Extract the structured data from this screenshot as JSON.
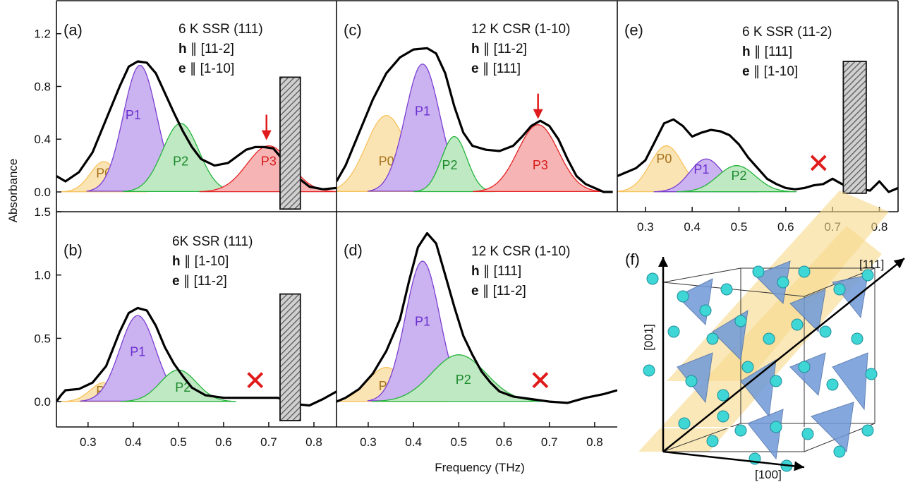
{
  "figure": {
    "ylabel": "Absorbance",
    "xlabel": "Frequency (THz)"
  },
  "chart_data": [
    {
      "panel": "(a)",
      "type": "area",
      "info": {
        "title": "6 K SSR (111)",
        "h_dir": "[11-2]",
        "e_dir": "[1-10]"
      },
      "xlim": [
        0.23,
        0.85
      ],
      "ylim": [
        -0.15,
        1.45
      ],
      "xticks": [],
      "yticks": [
        "0.0",
        "0.4",
        "0.8",
        "1.2"
      ],
      "ytick_values": [
        0.0,
        0.4,
        0.8,
        1.2
      ],
      "peaks": [
        {
          "name": "P0",
          "center": 0.335,
          "amp": 0.23,
          "width": 0.03,
          "color": "#f7c25c",
          "fill": "#fbe4b4",
          "label_color": "#a5711a",
          "label_xy": [
            0.335,
            0.11
          ]
        },
        {
          "name": "P1",
          "center": 0.415,
          "amp": 0.96,
          "width": 0.037,
          "color": "#7b3fd1",
          "fill": "#cbb2f0",
          "label_color": "#6a2fd0",
          "label_xy": [
            0.4,
            0.55
          ]
        },
        {
          "name": "P2",
          "center": 0.505,
          "amp": 0.52,
          "width": 0.04,
          "color": "#24b43c",
          "fill": "#bfe9c2",
          "label_color": "#1b8a2d",
          "label_xy": [
            0.505,
            0.2
          ]
        },
        {
          "name": "P3",
          "center": 0.7,
          "amp": 0.35,
          "width": 0.048,
          "color": "#e52222",
          "fill": "#f7b4b4",
          "label_color": "#d81a1a",
          "label_xy": [
            0.7,
            0.2
          ]
        }
      ],
      "total": [
        [
          0.23,
          0.12
        ],
        [
          0.25,
          0.08
        ],
        [
          0.28,
          0.15
        ],
        [
          0.31,
          0.3
        ],
        [
          0.34,
          0.55
        ],
        [
          0.37,
          0.8
        ],
        [
          0.39,
          0.95
        ],
        [
          0.41,
          0.99
        ],
        [
          0.43,
          0.98
        ],
        [
          0.45,
          0.9
        ],
        [
          0.47,
          0.75
        ],
        [
          0.49,
          0.6
        ],
        [
          0.51,
          0.46
        ],
        [
          0.53,
          0.34
        ],
        [
          0.55,
          0.25
        ],
        [
          0.58,
          0.2
        ],
        [
          0.61,
          0.22
        ],
        [
          0.63,
          0.27
        ],
        [
          0.65,
          0.32
        ],
        [
          0.67,
          0.34
        ],
        [
          0.69,
          0.34
        ],
        [
          0.71,
          0.33
        ],
        [
          0.73,
          0.25
        ],
        [
          0.76,
          0.12
        ],
        [
          0.79,
          0.04
        ],
        [
          0.82,
          0.02
        ],
        [
          0.85,
          0.03
        ]
      ],
      "marker": {
        "kind": "arrow",
        "x": 0.695
      },
      "block": {
        "x0": 0.725,
        "x1": 0.77,
        "y0": -0.13,
        "y1": 0.87
      }
    },
    {
      "panel": "(b)",
      "type": "area",
      "info": {
        "title": "6K SSR (111)",
        "h_dir": "[1-10]",
        "e_dir": "[11-2]"
      },
      "xlim": [
        0.23,
        0.85
      ],
      "ylim": [
        -0.2,
        1.5
      ],
      "xticks": [
        "0.3",
        "0.4",
        "0.5",
        "0.6",
        "0.7",
        "0.8"
      ],
      "xtick_values": [
        0.3,
        0.4,
        0.5,
        0.6,
        0.7,
        0.8
      ],
      "yticks": [
        "0.0",
        "0.5",
        "1.0",
        "1.5"
      ],
      "ytick_values": [
        0.0,
        0.5,
        1.0,
        1.5
      ],
      "peaks": [
        {
          "name": "P0",
          "center": 0.335,
          "amp": 0.15,
          "width": 0.03,
          "color": "#f7c25c",
          "fill": "#fbe4b4",
          "label_color": "#a5711a",
          "label_xy": [
            0.335,
            0.05
          ]
        },
        {
          "name": "P1",
          "center": 0.41,
          "amp": 0.68,
          "width": 0.04,
          "color": "#7b3fd1",
          "fill": "#cbb2f0",
          "label_color": "#6a2fd0",
          "label_xy": [
            0.41,
            0.36
          ]
        },
        {
          "name": "P2",
          "center": 0.5,
          "amp": 0.25,
          "width": 0.04,
          "color": "#24b43c",
          "fill": "#bfe9c2",
          "label_color": "#1b8a2d",
          "label_xy": [
            0.51,
            0.08
          ]
        }
      ],
      "total": [
        [
          0.23,
          0.0
        ],
        [
          0.24,
          0.05
        ],
        [
          0.25,
          0.09
        ],
        [
          0.28,
          0.1
        ],
        [
          0.31,
          0.15
        ],
        [
          0.34,
          0.28
        ],
        [
          0.37,
          0.55
        ],
        [
          0.39,
          0.7
        ],
        [
          0.41,
          0.74
        ],
        [
          0.43,
          0.72
        ],
        [
          0.45,
          0.6
        ],
        [
          0.47,
          0.43
        ],
        [
          0.49,
          0.3
        ],
        [
          0.51,
          0.2
        ],
        [
          0.53,
          0.11
        ],
        [
          0.56,
          0.05
        ],
        [
          0.6,
          0.03
        ],
        [
          0.64,
          0.03
        ],
        [
          0.68,
          0.03
        ],
        [
          0.72,
          0.03
        ],
        [
          0.76,
          -0.02
        ],
        [
          0.79,
          -0.03
        ],
        [
          0.82,
          0.02
        ],
        [
          0.85,
          0.08
        ]
      ],
      "marker": {
        "kind": "cross",
        "x": 0.67,
        "y": 0.17
      },
      "block": {
        "x0": 0.725,
        "x1": 0.77,
        "y0": -0.15,
        "y1": 0.85
      }
    },
    {
      "panel": "(c)",
      "type": "area",
      "info": {
        "title": "12 K CSR (1-10)",
        "h_dir": "[11-2]",
        "e_dir": "[111]"
      },
      "xlim": [
        0.23,
        0.85
      ],
      "ylim": [
        -0.15,
        1.45
      ],
      "xticks": [],
      "yticks": [],
      "peaks": [
        {
          "name": "P0",
          "center": 0.34,
          "amp": 0.58,
          "width": 0.045,
          "color": "#f7c25c",
          "fill": "#fbe4b4",
          "label_color": "#a5711a",
          "label_xy": [
            0.34,
            0.2
          ]
        },
        {
          "name": "P1",
          "center": 0.42,
          "amp": 0.97,
          "width": 0.038,
          "color": "#7b3fd1",
          "fill": "#cbb2f0",
          "label_color": "#6a2fd0",
          "label_xy": [
            0.42,
            0.58
          ]
        },
        {
          "name": "P2",
          "center": 0.49,
          "amp": 0.42,
          "width": 0.028,
          "color": "#24b43c",
          "fill": "#bfe9c2",
          "label_color": "#1b8a2d",
          "label_xy": [
            0.48,
            0.17
          ]
        },
        {
          "name": "P3",
          "center": 0.675,
          "amp": 0.51,
          "width": 0.045,
          "color": "#e52222",
          "fill": "#f7b4b4",
          "label_color": "#d81a1a",
          "label_xy": [
            0.68,
            0.17
          ]
        }
      ],
      "total": [
        [
          0.23,
          0.08
        ],
        [
          0.25,
          0.2
        ],
        [
          0.28,
          0.45
        ],
        [
          0.31,
          0.7
        ],
        [
          0.34,
          0.9
        ],
        [
          0.37,
          1.02
        ],
        [
          0.4,
          1.08
        ],
        [
          0.43,
          1.09
        ],
        [
          0.45,
          1.05
        ],
        [
          0.47,
          0.9
        ],
        [
          0.49,
          0.65
        ],
        [
          0.51,
          0.45
        ],
        [
          0.53,
          0.35
        ],
        [
          0.56,
          0.32
        ],
        [
          0.59,
          0.31
        ],
        [
          0.62,
          0.35
        ],
        [
          0.64,
          0.42
        ],
        [
          0.66,
          0.5
        ],
        [
          0.68,
          0.54
        ],
        [
          0.7,
          0.5
        ],
        [
          0.72,
          0.4
        ],
        [
          0.74,
          0.25
        ],
        [
          0.76,
          0.12
        ],
        [
          0.78,
          0.06
        ],
        [
          0.8,
          0.03
        ],
        [
          0.82,
          0.0
        ],
        [
          0.84,
          0.0
        ]
      ],
      "marker": {
        "kind": "arrow",
        "x": 0.675
      }
    },
    {
      "panel": "(d)",
      "type": "area",
      "info": {
        "title": "12 K CSR (1-10)",
        "h_dir": "[111]",
        "e_dir": "[11-2]"
      },
      "xlim": [
        0.23,
        0.85
      ],
      "ylim": [
        -0.2,
        1.5
      ],
      "xticks": [
        "0.3",
        "0.4",
        "0.5",
        "0.6",
        "0.7",
        "0.8"
      ],
      "xtick_values": [
        0.3,
        0.4,
        0.5,
        0.6,
        0.7,
        0.8
      ],
      "yticks": [],
      "peaks": [
        {
          "name": "P0",
          "center": 0.34,
          "amp": 0.27,
          "width": 0.042,
          "color": "#f7c25c",
          "fill": "#fbe4b4",
          "label_color": "#a5711a",
          "label_xy": [
            0.34,
            0.09
          ]
        },
        {
          "name": "P1",
          "center": 0.42,
          "amp": 1.11,
          "width": 0.038,
          "color": "#7b3fd1",
          "fill": "#cbb2f0",
          "label_color": "#6a2fd0",
          "label_xy": [
            0.42,
            0.6
          ]
        },
        {
          "name": "P2",
          "center": 0.5,
          "amp": 0.37,
          "width": 0.06,
          "color": "#24b43c",
          "fill": "#bfe9c2",
          "label_color": "#1b8a2d",
          "label_xy": [
            0.51,
            0.14
          ]
        }
      ],
      "total": [
        [
          0.23,
          0.0
        ],
        [
          0.25,
          0.03
        ],
        [
          0.28,
          0.1
        ],
        [
          0.31,
          0.22
        ],
        [
          0.34,
          0.4
        ],
        [
          0.37,
          0.65
        ],
        [
          0.39,
          0.95
        ],
        [
          0.41,
          1.22
        ],
        [
          0.43,
          1.33
        ],
        [
          0.45,
          1.25
        ],
        [
          0.47,
          1.0
        ],
        [
          0.49,
          0.75
        ],
        [
          0.51,
          0.52
        ],
        [
          0.53,
          0.37
        ],
        [
          0.55,
          0.24
        ],
        [
          0.57,
          0.15
        ],
        [
          0.59,
          0.08
        ],
        [
          0.62,
          0.04
        ],
        [
          0.66,
          0.02
        ],
        [
          0.7,
          0.0
        ],
        [
          0.74,
          -0.01
        ],
        [
          0.78,
          0.03
        ],
        [
          0.82,
          0.06
        ],
        [
          0.85,
          0.09
        ]
      ],
      "marker": {
        "kind": "cross",
        "x": 0.68,
        "y": 0.17
      }
    },
    {
      "panel": "(e)",
      "type": "area",
      "info": {
        "title": "6 K SSR (11-2)",
        "h_dir": "[111]",
        "e_dir": "[1-10]"
      },
      "xlim": [
        0.24,
        0.84
      ],
      "ylim": [
        -0.15,
        1.45
      ],
      "xticks": [
        "0.3",
        "0.4",
        "0.5",
        "0.6",
        "0.7",
        "0.8"
      ],
      "xtick_values": [
        0.3,
        0.4,
        0.5,
        0.6,
        0.7,
        0.8
      ],
      "yticks": [],
      "peaks": [
        {
          "name": "P0",
          "center": 0.345,
          "amp": 0.35,
          "width": 0.035,
          "color": "#f7c25c",
          "fill": "#fbe4b4",
          "label_color": "#a5711a",
          "label_xy": [
            0.34,
            0.22
          ]
        },
        {
          "name": "P1",
          "center": 0.43,
          "amp": 0.25,
          "width": 0.035,
          "color": "#7b3fd1",
          "fill": "#cbb2f0",
          "label_color": "#6a2fd0",
          "label_xy": [
            0.42,
            0.14
          ]
        },
        {
          "name": "P2",
          "center": 0.495,
          "amp": 0.2,
          "width": 0.04,
          "color": "#24b43c",
          "fill": "#bfe9c2",
          "label_color": "#1b8a2d",
          "label_xy": [
            0.5,
            0.09
          ]
        }
      ],
      "total": [
        [
          0.24,
          0.12
        ],
        [
          0.26,
          0.15
        ],
        [
          0.28,
          0.18
        ],
        [
          0.3,
          0.24
        ],
        [
          0.32,
          0.38
        ],
        [
          0.34,
          0.52
        ],
        [
          0.36,
          0.55
        ],
        [
          0.38,
          0.5
        ],
        [
          0.4,
          0.42
        ],
        [
          0.42,
          0.45
        ],
        [
          0.44,
          0.47
        ],
        [
          0.46,
          0.46
        ],
        [
          0.48,
          0.43
        ],
        [
          0.5,
          0.36
        ],
        [
          0.52,
          0.26
        ],
        [
          0.54,
          0.18
        ],
        [
          0.56,
          0.1
        ],
        [
          0.58,
          0.06
        ],
        [
          0.6,
          0.03
        ],
        [
          0.62,
          0.02
        ],
        [
          0.64,
          0.03
        ],
        [
          0.66,
          0.05
        ],
        [
          0.68,
          0.06
        ],
        [
          0.7,
          0.1
        ],
        [
          0.72,
          0.06
        ],
        [
          0.74,
          0.03
        ],
        [
          0.76,
          0.02
        ],
        [
          0.78,
          0.01
        ],
        [
          0.8,
          0.08
        ],
        [
          0.82,
          0.0
        ],
        [
          0.84,
          0.03
        ]
      ],
      "marker": {
        "kind": "cross",
        "x": 0.67,
        "y": 0.22
      },
      "block": {
        "x0": 0.723,
        "x1": 0.772,
        "y0": -0.01,
        "y1": 0.99
      }
    }
  ],
  "inset_f": {
    "panel": "(f)",
    "axis_labels": {
      "z": "[001]",
      "diag": "[111]",
      "x": "[100]"
    },
    "plane_color": "#f6d98a",
    "tetra_color": "#6f9ad8",
    "atom_color": "#3fd6d6"
  }
}
